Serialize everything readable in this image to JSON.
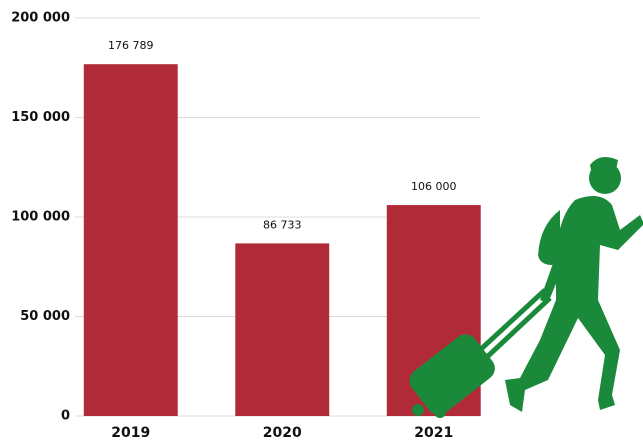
{
  "chart_data": {
    "type": "bar",
    "categories": [
      "2019",
      "2020",
      "2021"
    ],
    "values": [
      176789,
      86733,
      106000
    ],
    "value_labels": [
      "176 789",
      "86 733",
      "106 000"
    ],
    "color": "#b12a37",
    "ylim": [
      0,
      200000
    ],
    "yticks": [
      0,
      {
        "value": 50000,
        "label": "50 000"
      },
      {
        "value": 100000,
        "label": "100 000"
      },
      {
        "value": 150000,
        "label": "150 000"
      },
      {
        "value": 200000,
        "label": "200 000"
      }
    ],
    "grid": true
  }
}
